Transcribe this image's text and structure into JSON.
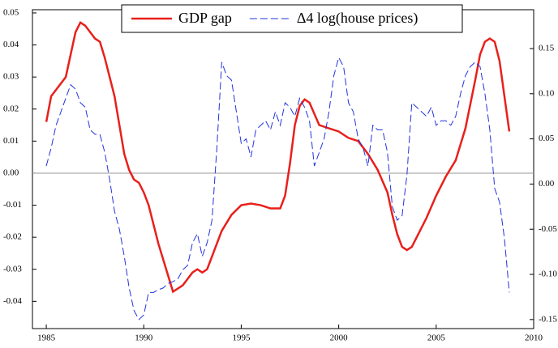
{
  "chart_data": {
    "type": "line",
    "xlim": [
      1984.29,
      2010
    ],
    "xticks": [
      1985,
      1990,
      1995,
      2000,
      2005,
      2010
    ],
    "ylim": [
      -0.0485,
      0.051
    ],
    "yticks": [
      0.05,
      0.04,
      0.03,
      0.02,
      0.01,
      {
        "value": 0,
        "label": "0.00"
      },
      -0.01,
      -0.02,
      -0.03,
      -0.04
    ],
    "y2lim": [
      -0.16,
      0.193
    ],
    "y2ticks": [
      0.15,
      {
        "value": 0.1,
        "label": "0.10"
      },
      0.05,
      {
        "value": 0,
        "label": "0.00"
      },
      -0.05,
      {
        "value": -0.1,
        "label": "-0.10"
      },
      -0.15
    ],
    "hline": 0,
    "legend": "top",
    "series": [
      {
        "name": "GDP gap",
        "color": "#e8201b",
        "dash": false,
        "x": [
          1985,
          1985.25,
          1985.5,
          1986,
          1986.25,
          1986.5,
          1986.75,
          1987,
          1987.5,
          1987.75,
          1988,
          1988.5,
          1988.75,
          1989,
          1989.25,
          1989.5,
          1989.75,
          1990,
          1990.25,
          1990.5,
          1990.75,
          1991,
          1991.25,
          1991.5,
          1991.75,
          1992,
          1992.25,
          1992.5,
          1992.75,
          1993,
          1993.25,
          1993.5,
          1993.75,
          1994,
          1994.5,
          1995,
          1995.5,
          1996,
          1996.5,
          1997,
          1997.25,
          1997.5,
          1997.75,
          1998,
          1998.25,
          1998.5,
          1999,
          1999.5,
          2000,
          2000.5,
          2001,
          2001.5,
          2002,
          2002.5,
          2002.75,
          2003,
          2003.25,
          2003.5,
          2003.75,
          2004,
          2004.5,
          2005,
          2005.5,
          2006,
          2006.5,
          2007,
          2007.25,
          2007.5,
          2007.75,
          2008,
          2008.25,
          2008.5,
          2008.75
        ],
        "values": [
          0.016,
          0.024,
          0.026,
          0.03,
          0.037,
          0.044,
          0.047,
          0.046,
          0.042,
          0.041,
          0.036,
          0.024,
          0.015,
          0.006,
          0.001,
          -0.002,
          -0.003,
          -0.006,
          -0.01,
          -0.016,
          -0.022,
          -0.027,
          -0.032,
          -0.037,
          -0.036,
          -0.035,
          -0.033,
          -0.031,
          -0.03,
          -0.031,
          -0.03,
          -0.026,
          -0.022,
          -0.018,
          -0.013,
          -0.01,
          -0.0095,
          -0.01,
          -0.011,
          -0.011,
          -0.007,
          0.003,
          0.015,
          0.021,
          0.023,
          0.022,
          0.015,
          0.014,
          0.013,
          0.011,
          0.01,
          0.006,
          0.001,
          -0.006,
          -0.013,
          -0.019,
          -0.023,
          -0.024,
          -0.023,
          -0.02,
          -0.014,
          -0.007,
          -0.001,
          0.004,
          0.014,
          0.029,
          0.037,
          0.041,
          0.042,
          0.041,
          0.035,
          0.024,
          0.013
        ]
      },
      {
        "name": "Δ4 log(house prices)",
        "color": "#2233dd",
        "dash": true,
        "axis": "y2",
        "x": [
          1985,
          1985.25,
          1985.5,
          1985.75,
          1986,
          1986.25,
          1986.5,
          1986.75,
          1987,
          1987.25,
          1987.5,
          1987.75,
          1988,
          1988.25,
          1988.5,
          1988.75,
          1989,
          1989.25,
          1989.5,
          1989.75,
          1990,
          1990.25,
          1990.5,
          1990.75,
          1991,
          1991.25,
          1991.5,
          1991.75,
          1992,
          1992.25,
          1992.5,
          1992.75,
          1993,
          1993.25,
          1993.5,
          1993.75,
          1994,
          1994.25,
          1994.5,
          1994.75,
          1995,
          1995.25,
          1995.5,
          1995.75,
          1996,
          1996.25,
          1996.5,
          1996.75,
          1997,
          1997.25,
          1997.5,
          1997.75,
          1998,
          1998.25,
          1998.5,
          1998.75,
          1999,
          1999.25,
          1999.5,
          1999.75,
          2000,
          2000.25,
          2000.5,
          2000.75,
          2001,
          2001.25,
          2001.5,
          2001.75,
          2002,
          2002.25,
          2002.5,
          2002.75,
          2003,
          2003.25,
          2003.5,
          2003.75,
          2004,
          2004.25,
          2004.5,
          2004.75,
          2005,
          2005.25,
          2005.5,
          2005.75,
          2006,
          2006.25,
          2006.5,
          2006.75,
          2007,
          2007.25,
          2007.5,
          2007.75,
          2008,
          2008.25,
          2008.5,
          2008.75
        ],
        "values": [
          0.02,
          0.04,
          0.065,
          0.08,
          0.095,
          0.11,
          0.105,
          0.09,
          0.085,
          0.06,
          0.055,
          0.055,
          0.035,
          0.005,
          -0.03,
          -0.05,
          -0.08,
          -0.115,
          -0.14,
          -0.15,
          -0.145,
          -0.12,
          -0.12,
          -0.117,
          -0.115,
          -0.11,
          -0.108,
          -0.105,
          -0.095,
          -0.09,
          -0.065,
          -0.055,
          -0.08,
          -0.065,
          -0.04,
          0.04,
          0.135,
          0.12,
          0.115,
          0.08,
          0.045,
          0.05,
          0.03,
          0.06,
          0.065,
          0.07,
          0.06,
          0.08,
          0.065,
          0.09,
          0.085,
          0.075,
          0.095,
          0.085,
          0.07,
          0.02,
          0.035,
          0.05,
          0.08,
          0.12,
          0.14,
          0.13,
          0.09,
          0.08,
          0.05,
          0.04,
          0.02,
          0.065,
          0.06,
          0.06,
          0.035,
          -0.025,
          -0.04,
          -0.035,
          0.01,
          0.09,
          0.085,
          0.08,
          0.075,
          0.085,
          0.065,
          0.07,
          0.07,
          0.065,
          0.075,
          0.1,
          0.12,
          0.13,
          0.135,
          0.13,
          0.1,
          0.06,
          -0.005,
          -0.02,
          -0.06,
          -0.12
        ]
      }
    ]
  }
}
